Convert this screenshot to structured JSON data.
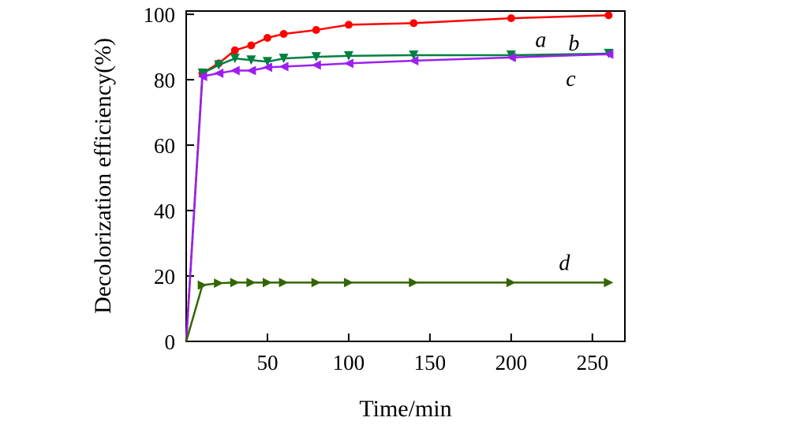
{
  "chart_data": {
    "type": "line",
    "xlabel": "Time/min",
    "ylabel": "Decolorization efficiency(%)",
    "xlim": [
      0,
      270
    ],
    "ylim": [
      0,
      101
    ],
    "xticks": [
      50,
      100,
      150,
      200,
      250
    ],
    "yticks": [
      0,
      20,
      40,
      60,
      80,
      100
    ],
    "grid": false,
    "legend": "none",
    "series": [
      {
        "name": "a",
        "color": "#ff0000",
        "marker": "circle",
        "x": [
          0,
          10,
          20,
          30,
          40,
          50,
          60,
          80,
          100,
          140,
          200,
          260
        ],
        "y": [
          0,
          82,
          85,
          89,
          90.5,
          92.8,
          94,
          95.2,
          96.8,
          97.3,
          98.8,
          99.7
        ]
      },
      {
        "name": "b",
        "color": "#008040",
        "marker": "triangle-down",
        "x": [
          0,
          10,
          20,
          30,
          40,
          50,
          60,
          80,
          100,
          140,
          200,
          260
        ],
        "y": [
          0,
          82,
          84.5,
          86.5,
          86,
          85.5,
          86.5,
          87,
          87.3,
          87.5,
          87.5,
          88
        ]
      },
      {
        "name": "c",
        "color": "#9d1ff0",
        "marker": "triangle-left",
        "x": [
          0,
          10,
          20,
          30,
          40,
          50,
          60,
          80,
          100,
          140,
          200,
          260
        ],
        "y": [
          0,
          81,
          82,
          82.8,
          82.8,
          83.8,
          84,
          84.5,
          85,
          85.8,
          86.8,
          87.8
        ]
      },
      {
        "name": "d",
        "color": "#336600",
        "marker": "triangle-right",
        "x": [
          0,
          10,
          20,
          30,
          40,
          50,
          60,
          80,
          100,
          140,
          200,
          260
        ],
        "y": [
          0,
          17.2,
          17.8,
          18,
          18,
          18,
          18,
          18,
          18,
          18,
          18,
          18
        ]
      }
    ]
  }
}
